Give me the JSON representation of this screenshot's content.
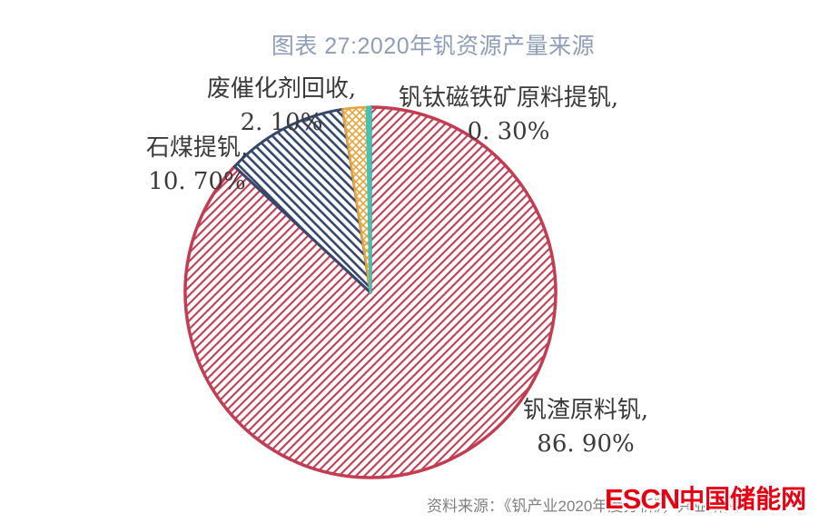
{
  "header": {
    "title": "图表 27:2020年钒资源产量来源",
    "title_color": "#8E9EB8"
  },
  "chart_data": {
    "type": "pie",
    "title": "图表 27:2020年钒资源产量来源",
    "legend": "none",
    "labels_position": "outside",
    "start_angle_deg": 0,
    "direction": "clockwise",
    "categories": [
      "钒渣原料钒",
      "石煤提钒",
      "废催化剂回收",
      "钒钛磁铁矿原料提钒"
    ],
    "values": [
      86.9,
      10.7,
      2.1,
      0.3
    ],
    "slices": [
      {
        "id": "vanadium-slag",
        "name": "钒渣原料钒",
        "value": 86.9,
        "label_line": "钒渣原料钒,",
        "value_label": "86. 90%",
        "color": "#C23C52",
        "pattern": "diag-up"
      },
      {
        "id": "stone-coal",
        "name": "石煤提钒",
        "value": 10.7,
        "label_line": "石煤提钒,",
        "value_label": "10. 70%",
        "color": "#35476B",
        "pattern": "diag-down"
      },
      {
        "id": "spent-catalyst",
        "name": "废催化剂回收",
        "value": 2.1,
        "label_line": "废催化剂回收,",
        "value_label": "2. 10%",
        "color": "#E8A33B",
        "pattern": "cross"
      },
      {
        "id": "vtm-magnetite",
        "name": "钒钛磁铁矿原料提钒",
        "value": 0.3,
        "label_line": "钒钛磁铁矿原料提钒,",
        "value_label": "0. 30%",
        "color": "#43C3B3",
        "pattern": "solid"
      }
    ]
  },
  "footer": {
    "source_text": "资料来源：《钒产业2020年度分析》，兴业研究",
    "source_color": "#808080",
    "watermark_latin": "ESCN",
    "watermark_cjk": "中国储能网",
    "watermark_color": "#E60012"
  }
}
